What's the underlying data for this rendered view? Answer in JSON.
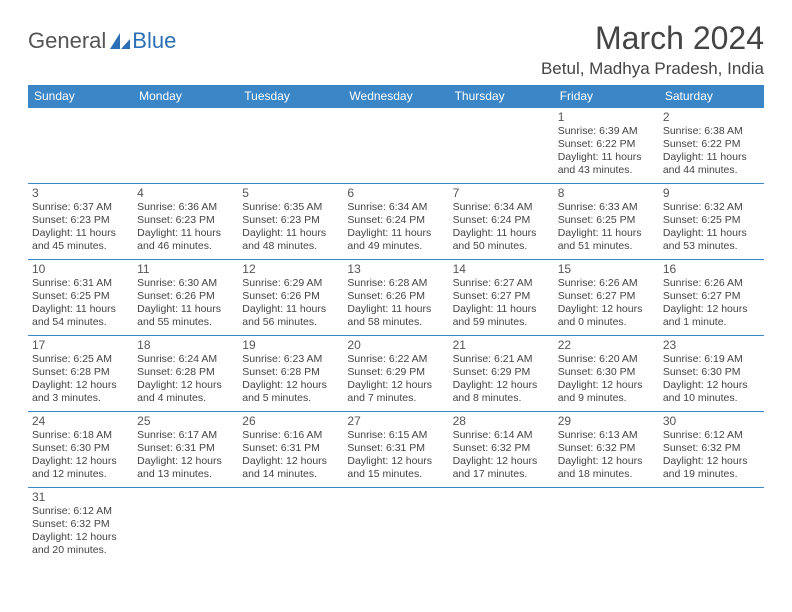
{
  "brand": {
    "word1": "General",
    "word2": "Blue"
  },
  "title": "March 2024",
  "location": "Betul, Madhya Pradesh, India",
  "colors": {
    "header_bg": "#3b86c6",
    "header_text": "#ffffff",
    "border": "#3b86c6",
    "text": "#444444",
    "brand_gray": "#555555",
    "brand_blue": "#2d6fb5",
    "page_bg": "#ffffff"
  },
  "weekdays": [
    "Sunday",
    "Monday",
    "Tuesday",
    "Wednesday",
    "Thursday",
    "Friday",
    "Saturday"
  ],
  "weeks": [
    [
      null,
      null,
      null,
      null,
      null,
      {
        "n": "1",
        "sr": "Sunrise: 6:39 AM",
        "ss": "Sunset: 6:22 PM",
        "d1": "Daylight: 11 hours",
        "d2": "and 43 minutes."
      },
      {
        "n": "2",
        "sr": "Sunrise: 6:38 AM",
        "ss": "Sunset: 6:22 PM",
        "d1": "Daylight: 11 hours",
        "d2": "and 44 minutes."
      }
    ],
    [
      {
        "n": "3",
        "sr": "Sunrise: 6:37 AM",
        "ss": "Sunset: 6:23 PM",
        "d1": "Daylight: 11 hours",
        "d2": "and 45 minutes."
      },
      {
        "n": "4",
        "sr": "Sunrise: 6:36 AM",
        "ss": "Sunset: 6:23 PM",
        "d1": "Daylight: 11 hours",
        "d2": "and 46 minutes."
      },
      {
        "n": "5",
        "sr": "Sunrise: 6:35 AM",
        "ss": "Sunset: 6:23 PM",
        "d1": "Daylight: 11 hours",
        "d2": "and 48 minutes."
      },
      {
        "n": "6",
        "sr": "Sunrise: 6:34 AM",
        "ss": "Sunset: 6:24 PM",
        "d1": "Daylight: 11 hours",
        "d2": "and 49 minutes."
      },
      {
        "n": "7",
        "sr": "Sunrise: 6:34 AM",
        "ss": "Sunset: 6:24 PM",
        "d1": "Daylight: 11 hours",
        "d2": "and 50 minutes."
      },
      {
        "n": "8",
        "sr": "Sunrise: 6:33 AM",
        "ss": "Sunset: 6:25 PM",
        "d1": "Daylight: 11 hours",
        "d2": "and 51 minutes."
      },
      {
        "n": "9",
        "sr": "Sunrise: 6:32 AM",
        "ss": "Sunset: 6:25 PM",
        "d1": "Daylight: 11 hours",
        "d2": "and 53 minutes."
      }
    ],
    [
      {
        "n": "10",
        "sr": "Sunrise: 6:31 AM",
        "ss": "Sunset: 6:25 PM",
        "d1": "Daylight: 11 hours",
        "d2": "and 54 minutes."
      },
      {
        "n": "11",
        "sr": "Sunrise: 6:30 AM",
        "ss": "Sunset: 6:26 PM",
        "d1": "Daylight: 11 hours",
        "d2": "and 55 minutes."
      },
      {
        "n": "12",
        "sr": "Sunrise: 6:29 AM",
        "ss": "Sunset: 6:26 PM",
        "d1": "Daylight: 11 hours",
        "d2": "and 56 minutes."
      },
      {
        "n": "13",
        "sr": "Sunrise: 6:28 AM",
        "ss": "Sunset: 6:26 PM",
        "d1": "Daylight: 11 hours",
        "d2": "and 58 minutes."
      },
      {
        "n": "14",
        "sr": "Sunrise: 6:27 AM",
        "ss": "Sunset: 6:27 PM",
        "d1": "Daylight: 11 hours",
        "d2": "and 59 minutes."
      },
      {
        "n": "15",
        "sr": "Sunrise: 6:26 AM",
        "ss": "Sunset: 6:27 PM",
        "d1": "Daylight: 12 hours",
        "d2": "and 0 minutes."
      },
      {
        "n": "16",
        "sr": "Sunrise: 6:26 AM",
        "ss": "Sunset: 6:27 PM",
        "d1": "Daylight: 12 hours",
        "d2": "and 1 minute."
      }
    ],
    [
      {
        "n": "17",
        "sr": "Sunrise: 6:25 AM",
        "ss": "Sunset: 6:28 PM",
        "d1": "Daylight: 12 hours",
        "d2": "and 3 minutes."
      },
      {
        "n": "18",
        "sr": "Sunrise: 6:24 AM",
        "ss": "Sunset: 6:28 PM",
        "d1": "Daylight: 12 hours",
        "d2": "and 4 minutes."
      },
      {
        "n": "19",
        "sr": "Sunrise: 6:23 AM",
        "ss": "Sunset: 6:28 PM",
        "d1": "Daylight: 12 hours",
        "d2": "and 5 minutes."
      },
      {
        "n": "20",
        "sr": "Sunrise: 6:22 AM",
        "ss": "Sunset: 6:29 PM",
        "d1": "Daylight: 12 hours",
        "d2": "and 7 minutes."
      },
      {
        "n": "21",
        "sr": "Sunrise: 6:21 AM",
        "ss": "Sunset: 6:29 PM",
        "d1": "Daylight: 12 hours",
        "d2": "and 8 minutes."
      },
      {
        "n": "22",
        "sr": "Sunrise: 6:20 AM",
        "ss": "Sunset: 6:30 PM",
        "d1": "Daylight: 12 hours",
        "d2": "and 9 minutes."
      },
      {
        "n": "23",
        "sr": "Sunrise: 6:19 AM",
        "ss": "Sunset: 6:30 PM",
        "d1": "Daylight: 12 hours",
        "d2": "and 10 minutes."
      }
    ],
    [
      {
        "n": "24",
        "sr": "Sunrise: 6:18 AM",
        "ss": "Sunset: 6:30 PM",
        "d1": "Daylight: 12 hours",
        "d2": "and 12 minutes."
      },
      {
        "n": "25",
        "sr": "Sunrise: 6:17 AM",
        "ss": "Sunset: 6:31 PM",
        "d1": "Daylight: 12 hours",
        "d2": "and 13 minutes."
      },
      {
        "n": "26",
        "sr": "Sunrise: 6:16 AM",
        "ss": "Sunset: 6:31 PM",
        "d1": "Daylight: 12 hours",
        "d2": "and 14 minutes."
      },
      {
        "n": "27",
        "sr": "Sunrise: 6:15 AM",
        "ss": "Sunset: 6:31 PM",
        "d1": "Daylight: 12 hours",
        "d2": "and 15 minutes."
      },
      {
        "n": "28",
        "sr": "Sunrise: 6:14 AM",
        "ss": "Sunset: 6:32 PM",
        "d1": "Daylight: 12 hours",
        "d2": "and 17 minutes."
      },
      {
        "n": "29",
        "sr": "Sunrise: 6:13 AM",
        "ss": "Sunset: 6:32 PM",
        "d1": "Daylight: 12 hours",
        "d2": "and 18 minutes."
      },
      {
        "n": "30",
        "sr": "Sunrise: 6:12 AM",
        "ss": "Sunset: 6:32 PM",
        "d1": "Daylight: 12 hours",
        "d2": "and 19 minutes."
      }
    ],
    [
      {
        "n": "31",
        "sr": "Sunrise: 6:12 AM",
        "ss": "Sunset: 6:32 PM",
        "d1": "Daylight: 12 hours",
        "d2": "and 20 minutes."
      },
      null,
      null,
      null,
      null,
      null,
      null
    ]
  ]
}
